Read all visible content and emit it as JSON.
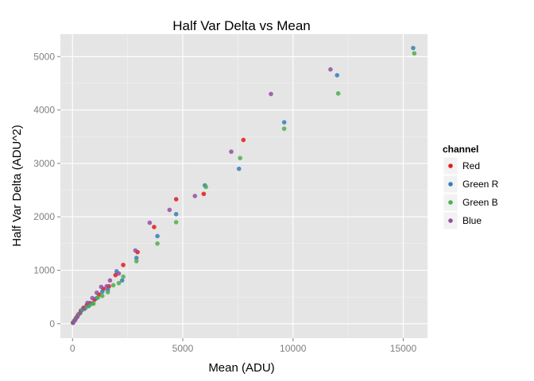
{
  "chart_data": {
    "type": "scatter",
    "title": "Half Var Delta vs Mean",
    "xlabel": "Mean (ADU)",
    "ylabel": "Half Var Delta (ADU^2)",
    "xlim": [
      -550,
      16100
    ],
    "ylim": [
      -270,
      5420
    ],
    "xticks": [
      0,
      5000,
      10000,
      15000
    ],
    "xtick_labels": [
      "0",
      "5000",
      "10000",
      "15000"
    ],
    "yticks": [
      0,
      1000,
      2000,
      3000,
      4000,
      5000
    ],
    "ytick_labels": [
      "0",
      "1000",
      "2000",
      "3000",
      "4000",
      "5000"
    ],
    "grid": true,
    "legend": {
      "title": "channel",
      "placement": "right"
    },
    "series": [
      {
        "name": "Red",
        "color": "#E41A1C",
        "points": [
          [
            20,
            18
          ],
          [
            80,
            55
          ],
          [
            150,
            100
          ],
          [
            250,
            165
          ],
          [
            380,
            245
          ],
          [
            500,
            300
          ],
          [
            650,
            350
          ],
          [
            800,
            385
          ],
          [
            1000,
            450
          ],
          [
            1200,
            545
          ],
          [
            1400,
            650
          ],
          [
            1650,
            700
          ],
          [
            1950,
            910
          ],
          [
            2300,
            1100
          ],
          [
            2950,
            1340
          ],
          [
            3700,
            1810
          ],
          [
            4700,
            2330
          ],
          [
            5950,
            2430
          ],
          [
            7750,
            3440
          ]
        ]
      },
      {
        "name": "Green R",
        "color": "#377EB8",
        "points": [
          [
            20,
            18
          ],
          [
            90,
            60
          ],
          [
            170,
            110
          ],
          [
            280,
            180
          ],
          [
            410,
            250
          ],
          [
            550,
            280
          ],
          [
            720,
            330
          ],
          [
            900,
            380
          ],
          [
            1100,
            480
          ],
          [
            1350,
            600
          ],
          [
            1600,
            640
          ],
          [
            2000,
            980
          ],
          [
            2250,
            810
          ],
          [
            2900,
            1230
          ],
          [
            3850,
            1640
          ],
          [
            4700,
            2050
          ],
          [
            6000,
            2590
          ],
          [
            7550,
            2900
          ],
          [
            9600,
            3770
          ],
          [
            12000,
            4650
          ],
          [
            15450,
            5160
          ]
        ]
      },
      {
        "name": "Green B",
        "color": "#4DAF4A",
        "points": [
          [
            20,
            18
          ],
          [
            100,
            65
          ],
          [
            190,
            120
          ],
          [
            300,
            185
          ],
          [
            450,
            260
          ],
          [
            600,
            300
          ],
          [
            780,
            345
          ],
          [
            950,
            375
          ],
          [
            1150,
            490
          ],
          [
            1350,
            520
          ],
          [
            1600,
            590
          ],
          [
            1850,
            720
          ],
          [
            2100,
            760
          ],
          [
            2300,
            880
          ],
          [
            2900,
            1170
          ],
          [
            3850,
            1500
          ],
          [
            4700,
            1900
          ],
          [
            6050,
            2560
          ],
          [
            7600,
            3100
          ],
          [
            9600,
            3650
          ],
          [
            12050,
            4310
          ],
          [
            15500,
            5060
          ]
        ]
      },
      {
        "name": "Blue",
        "color": "#984EA3",
        "points": [
          [
            30,
            20
          ],
          [
            120,
            70
          ],
          [
            220,
            130
          ],
          [
            350,
            200
          ],
          [
            500,
            290
          ],
          [
            680,
            390
          ],
          [
            900,
            480
          ],
          [
            1100,
            580
          ],
          [
            1300,
            690
          ],
          [
            1550,
            700
          ],
          [
            1700,
            810
          ],
          [
            2100,
            940
          ],
          [
            2850,
            1370
          ],
          [
            3500,
            1890
          ],
          [
            4400,
            2130
          ],
          [
            5550,
            2390
          ],
          [
            7200,
            3220
          ],
          [
            9000,
            4300
          ],
          [
            11700,
            4760
          ]
        ]
      }
    ]
  }
}
